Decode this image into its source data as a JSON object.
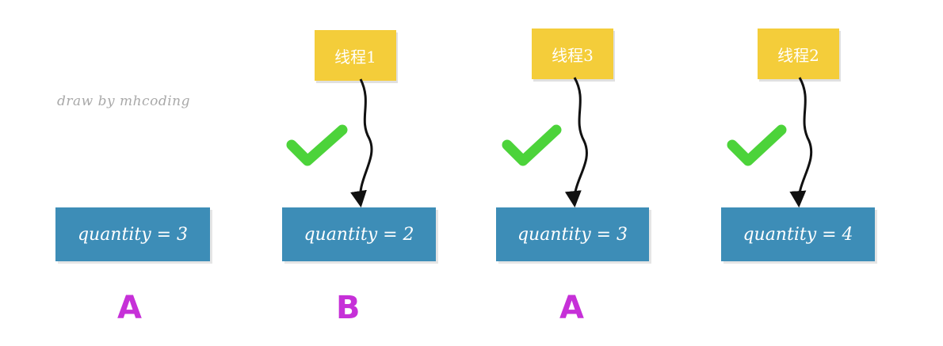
{
  "credit": "draw by mhcoding",
  "threads": [
    "线程1",
    "线程3",
    "线程2"
  ],
  "boxes": [
    "quantity = 3",
    "quantity = 2",
    "quantity = 3",
    "quantity = 4"
  ],
  "letters": [
    "A",
    "B",
    "A"
  ],
  "colors": {
    "note": "#f4cd3a",
    "box": "#3d8db7",
    "check": "#4cd33a",
    "letter": "#c630d8",
    "arrow": "#111111"
  },
  "icons": [
    "checkmark-icon",
    "arrow-icon"
  ]
}
